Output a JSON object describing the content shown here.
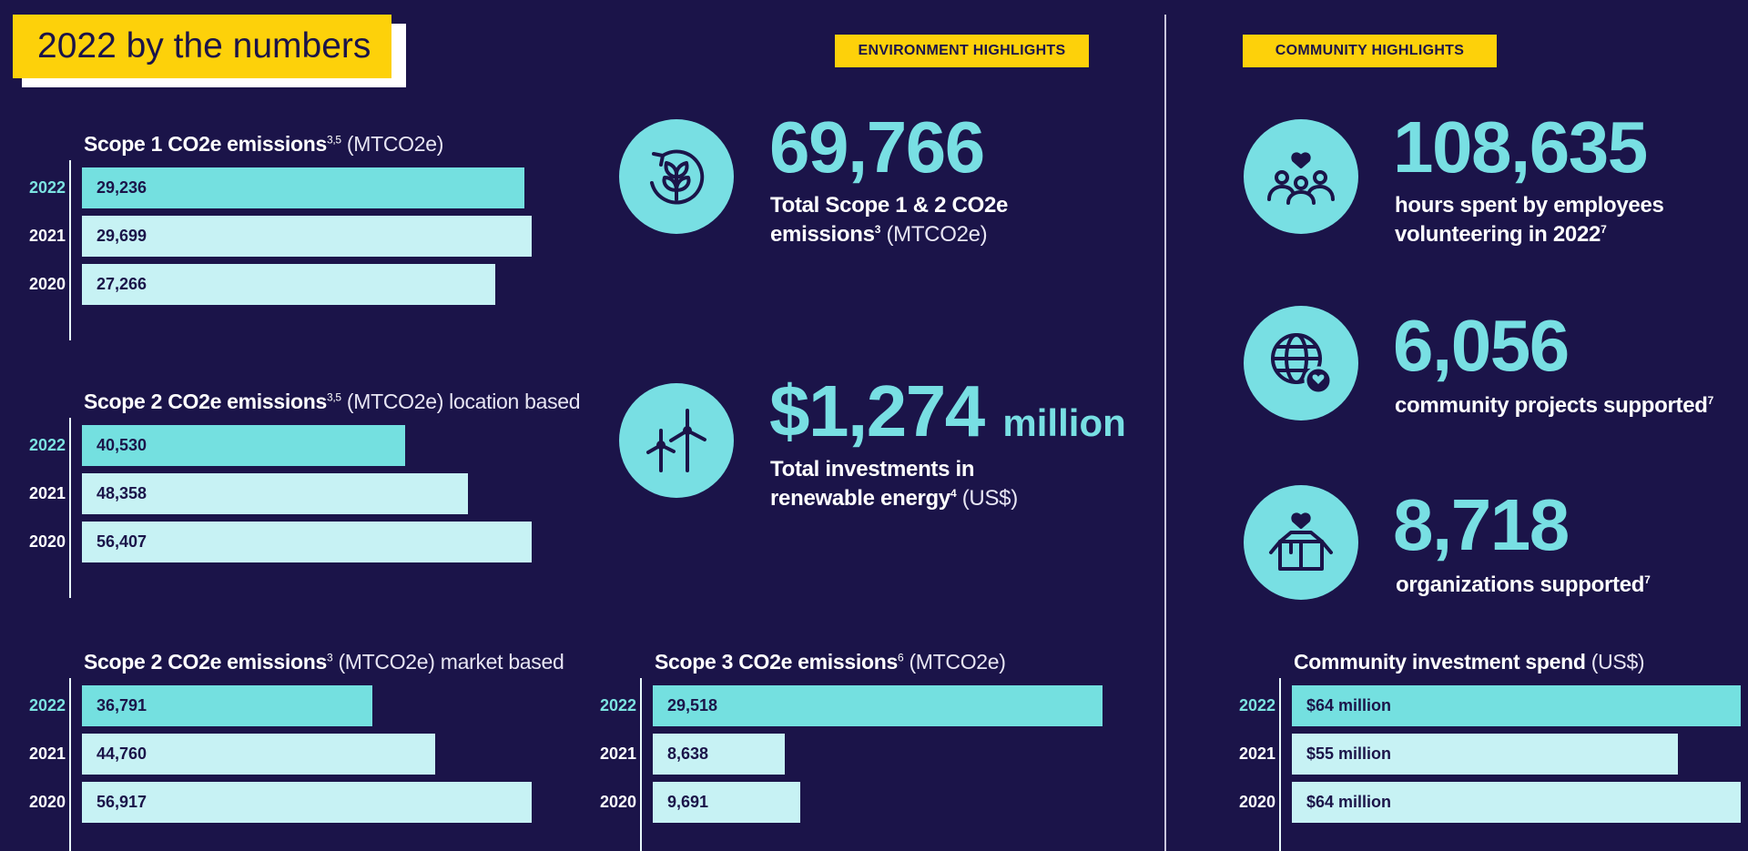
{
  "title": "2022 by the numbers",
  "tags": {
    "environment": "ENVIRONMENT HIGHLIGHTS",
    "community": "COMMUNITY HIGHLIGHTS"
  },
  "stats": {
    "total_emissions": {
      "value": "69,766",
      "line1": "Total Scope 1 & 2 CO2e",
      "line2": "emissions",
      "sup": "3",
      "unit": "(MTCO2e)",
      "icon": "leaf-cycle-icon"
    },
    "renewable": {
      "value": "$1,274",
      "unit_big": "million",
      "line1": "Total investments in",
      "line2": "renewable energy",
      "sup": "4",
      "unit": "(US$)",
      "icon": "wind-turbine-icon"
    },
    "volunteer_hours": {
      "value": "108,635",
      "line1": "hours spent by employees",
      "line2": "volunteering in 2022",
      "sup": "7",
      "icon": "people-heart-icon"
    },
    "projects": {
      "value": "6,056",
      "line1": "community projects supported",
      "sup": "7",
      "icon": "globe-heart-icon"
    },
    "organizations": {
      "value": "8,718",
      "line1": "organizations supported",
      "sup": "7",
      "icon": "box-heart-icon"
    }
  },
  "chart_data": [
    {
      "type": "bar",
      "title": "Scope 1 CO2e emissions",
      "title_sup": "3,5",
      "title_suffix": "(MTCO2e)",
      "categories": [
        "2022",
        "2021",
        "2020"
      ],
      "values": [
        29236,
        29699,
        27266
      ],
      "labels": [
        "29,236",
        "29,699",
        "27,266"
      ],
      "xlim": [
        0,
        29699
      ]
    },
    {
      "type": "bar",
      "title": "Scope 2 CO2e emissions",
      "title_sup": "3,5",
      "title_suffix": "(MTCO2e) location based",
      "categories": [
        "2022",
        "2021",
        "2020"
      ],
      "values": [
        40530,
        48358,
        56407
      ],
      "labels": [
        "40,530",
        "48,358",
        "56,407"
      ],
      "xlim": [
        0,
        56407
      ]
    },
    {
      "type": "bar",
      "title": "Scope 2 CO2e emissions",
      "title_sup": "3",
      "title_suffix": "(MTCO2e) market based",
      "categories": [
        "2022",
        "2021",
        "2020"
      ],
      "values": [
        36791,
        44760,
        56917
      ],
      "labels": [
        "36,791",
        "44,760",
        "56,917"
      ],
      "xlim": [
        0,
        56917
      ]
    },
    {
      "type": "bar",
      "title": "Scope 3 CO2e emissions",
      "title_sup": "6",
      "title_suffix": "(MTCO2e)",
      "categories": [
        "2022",
        "2021",
        "2020"
      ],
      "values": [
        29518,
        8638,
        9691
      ],
      "labels": [
        "29,518",
        "8,638",
        "9,691"
      ],
      "xlim": [
        0,
        29518
      ]
    },
    {
      "type": "bar",
      "title": "Community investment spend",
      "title_sup": "",
      "title_suffix": "(US$)",
      "categories": [
        "2022",
        "2021",
        "2020"
      ],
      "values": [
        64,
        55,
        64
      ],
      "labels": [
        "$64 million",
        "$55 million",
        "$64 million"
      ],
      "xlim": [
        0,
        64
      ]
    }
  ],
  "colors": {
    "background": "#1b1449",
    "accent": "#78dfe3",
    "bar_current": "#74e0e0",
    "bar_past": "#c7f2f4",
    "tag": "#fdd10a"
  }
}
